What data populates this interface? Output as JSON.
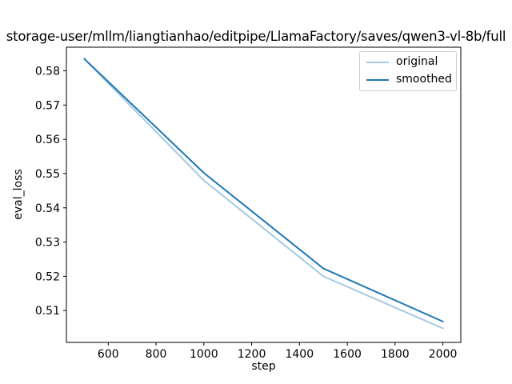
{
  "title": "storage-user/mllm/liangtianhao/editpipe/LlamaFactory/saves/qwen3-vl-8b/full",
  "chart_data": {
    "type": "line",
    "x": [
      500,
      1000,
      1500,
      2000
    ],
    "series": [
      {
        "name": "original",
        "values": [
          0.5835,
          0.548,
          0.52,
          0.5048
        ],
        "color": "#a5c9e1"
      },
      {
        "name": "smoothed",
        "values": [
          0.5835,
          0.5502,
          0.5223,
          0.5068
        ],
        "color": "#1f77b4"
      }
    ],
    "xlabel": "step",
    "ylabel": "eval_loss",
    "xlim": [
      425,
      2075
    ],
    "ylim": [
      0.5007,
      0.5869
    ],
    "xticks": [
      600,
      800,
      1000,
      1200,
      1400,
      1600,
      1800,
      2000
    ],
    "yticks": [
      0.51,
      0.52,
      0.53,
      0.54,
      0.55,
      0.56,
      0.57,
      0.58
    ],
    "legend_position": "upper right",
    "grid": false,
    "line_width": 2,
    "axes_color": "#000000",
    "background_color": "#ffffff"
  }
}
